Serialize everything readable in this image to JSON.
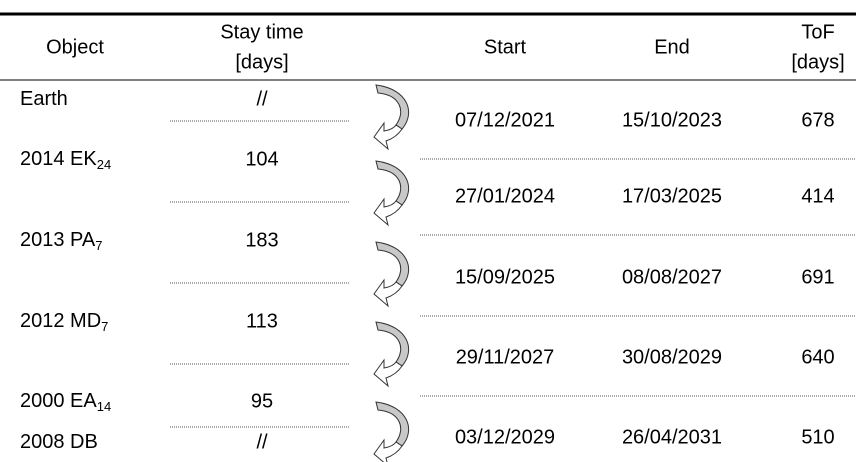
{
  "table": {
    "headers": {
      "object": "Object",
      "stay_time": [
        "Stay time",
        "[days]"
      ],
      "start": "Start",
      "end": "End",
      "tof": [
        "ToF",
        "[days]"
      ]
    },
    "objects": [
      {
        "name": "Earth",
        "sub": null,
        "stay": "//"
      },
      {
        "name": "2014 EK",
        "sub": "24",
        "stay": "104"
      },
      {
        "name": "2013 PA",
        "sub": "7",
        "stay": "183"
      },
      {
        "name": "2012 MD",
        "sub": "7",
        "stay": "113"
      },
      {
        "name": "2000 EA",
        "sub": "14",
        "stay": "95"
      },
      {
        "name": "2008 DB",
        "sub": null,
        "stay": "//"
      }
    ],
    "legs": [
      {
        "start": "07/12/2021",
        "end": "15/10/2023",
        "tof": "678"
      },
      {
        "start": "27/01/2024",
        "end": "17/03/2025",
        "tof": "414"
      },
      {
        "start": "15/09/2025",
        "end": "08/08/2027",
        "tof": "691"
      },
      {
        "start": "29/11/2027",
        "end": "30/08/2029",
        "tof": "640"
      },
      {
        "start": "03/12/2029",
        "end": "26/04/2031",
        "tof": "510"
      }
    ]
  }
}
